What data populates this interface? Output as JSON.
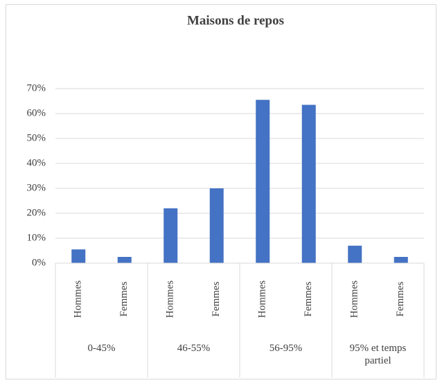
{
  "chart_data": {
    "type": "bar",
    "title": "Maisons de repos",
    "groups": [
      "0-45%",
      "46-55%",
      "56-95%",
      "95% et temps partiel"
    ],
    "categories": [
      "Hommes",
      "Femmes",
      "Hommes",
      "Femmes",
      "Hommes",
      "Femmes",
      "Hommes",
      "Femmes"
    ],
    "values": [
      5.5,
      2.5,
      22,
      30,
      65.5,
      63.5,
      7,
      2.5
    ],
    "color": "#4472c4",
    "ylim": [
      0,
      70
    ],
    "yticks": [
      {
        "value": 0,
        "label": "0%"
      },
      {
        "value": 10,
        "label": "10%"
      },
      {
        "value": 20,
        "label": "20%"
      },
      {
        "value": 30,
        "label": "30%"
      },
      {
        "value": 40,
        "label": "40%"
      },
      {
        "value": 50,
        "label": "50%"
      },
      {
        "value": 60,
        "label": "60%"
      },
      {
        "value": 70,
        "label": "70%"
      }
    ],
    "grid": true
  }
}
